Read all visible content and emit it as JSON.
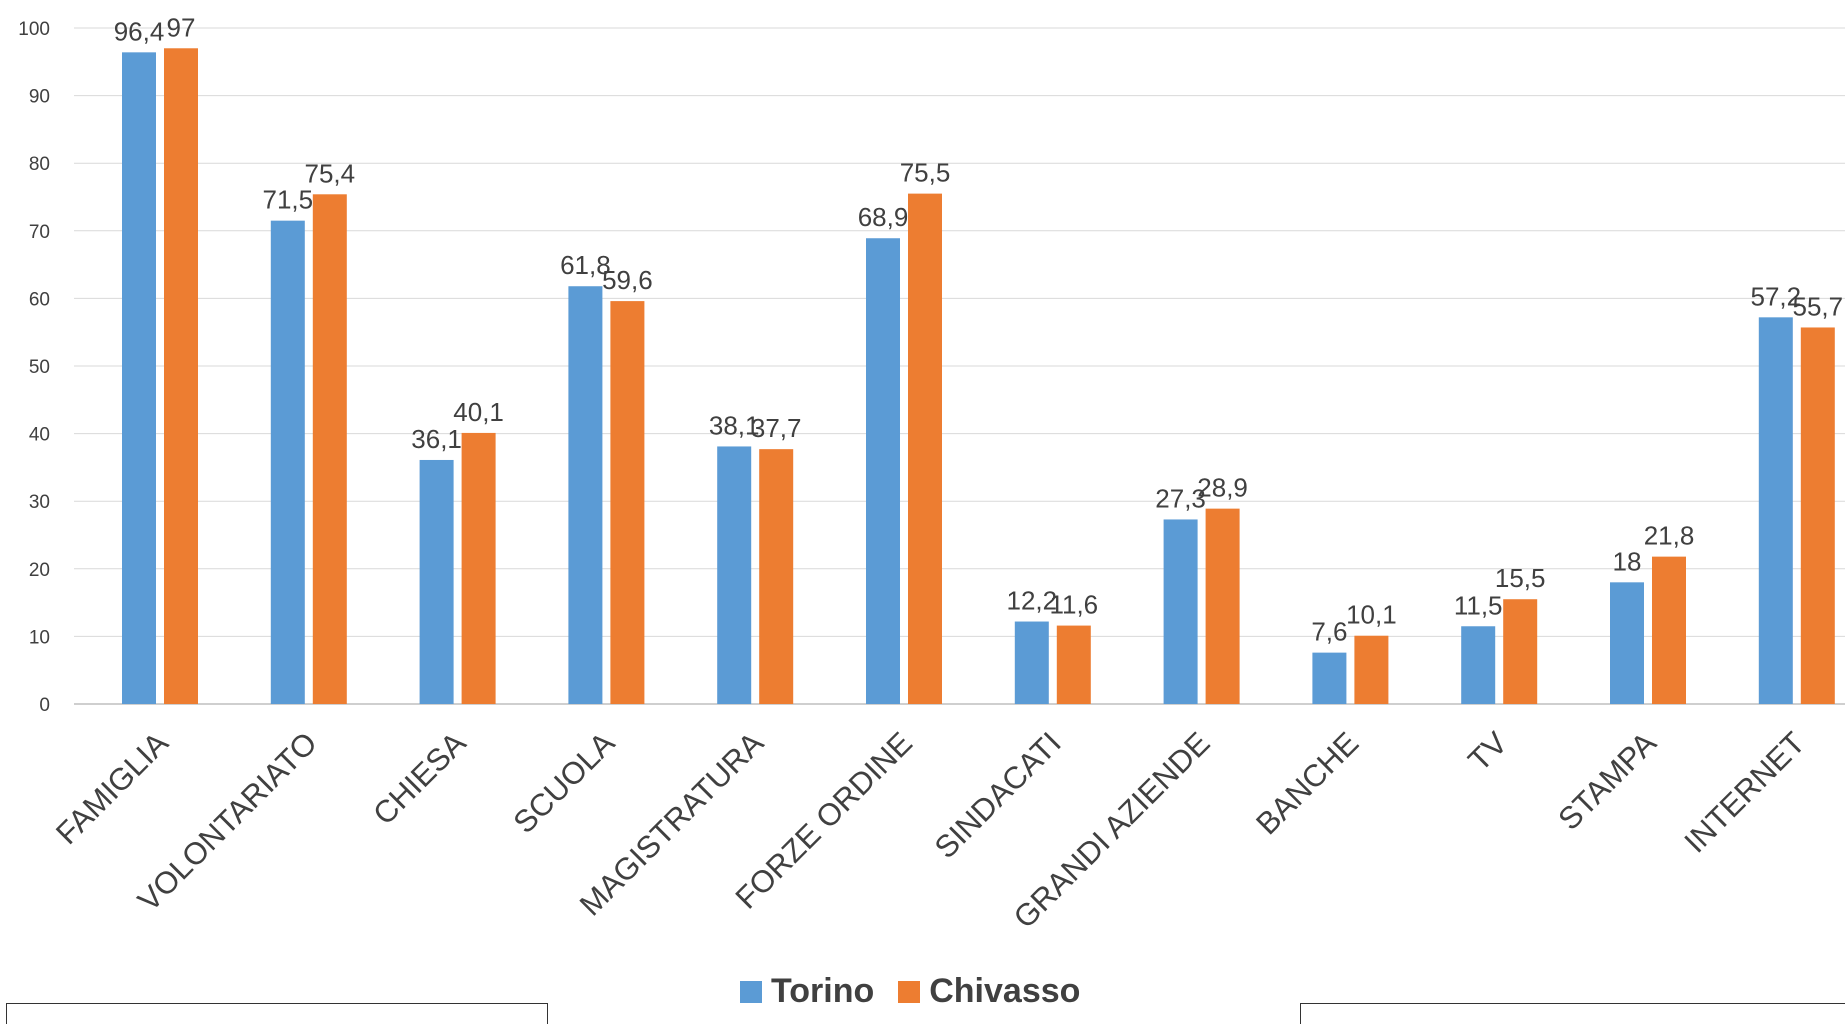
{
  "chart_data": {
    "type": "bar",
    "categories": [
      "FAMIGLIA",
      "VOLONTARIATO",
      "CHIESA",
      "SCUOLA",
      "MAGISTRATURA",
      "FORZE ORDINE",
      "SINDACATI",
      "GRANDI AZIENDE",
      "BANCHE",
      "TV",
      "STAMPA",
      "INTERNET"
    ],
    "series": [
      {
        "name": "Torino",
        "color": "#5B9BD5",
        "values": [
          96.4,
          71.5,
          36.1,
          61.8,
          38.1,
          68.9,
          12.2,
          27.3,
          7.6,
          11.5,
          18,
          57.2
        ],
        "labels": [
          "96,4",
          "71,5",
          "36,1",
          "61,8",
          "38,1",
          "68,9",
          "12,2",
          "27,3",
          "7,6",
          "11,5",
          "18",
          "57,2"
        ]
      },
      {
        "name": "Chivasso",
        "color": "#ED7D31",
        "values": [
          97,
          75.4,
          40.1,
          59.6,
          37.7,
          75.5,
          11.6,
          28.9,
          10.1,
          15.5,
          21.8,
          55.7
        ],
        "labels": [
          "97",
          "75,4",
          "40,1",
          "59,6",
          "37,7",
          "75,5",
          "11,6",
          "28,9",
          "10,1",
          "15,5",
          "21,8",
          "55,7"
        ]
      }
    ],
    "ylim": [
      0,
      100
    ],
    "yticks": [
      0,
      10,
      20,
      30,
      40,
      50,
      60,
      70,
      80,
      90,
      100
    ],
    "grid": true,
    "legend": "bottom",
    "title": "",
    "xlabel": "",
    "ylabel": ""
  },
  "legend": {
    "series1": "Torino",
    "series2": "Chivasso"
  }
}
